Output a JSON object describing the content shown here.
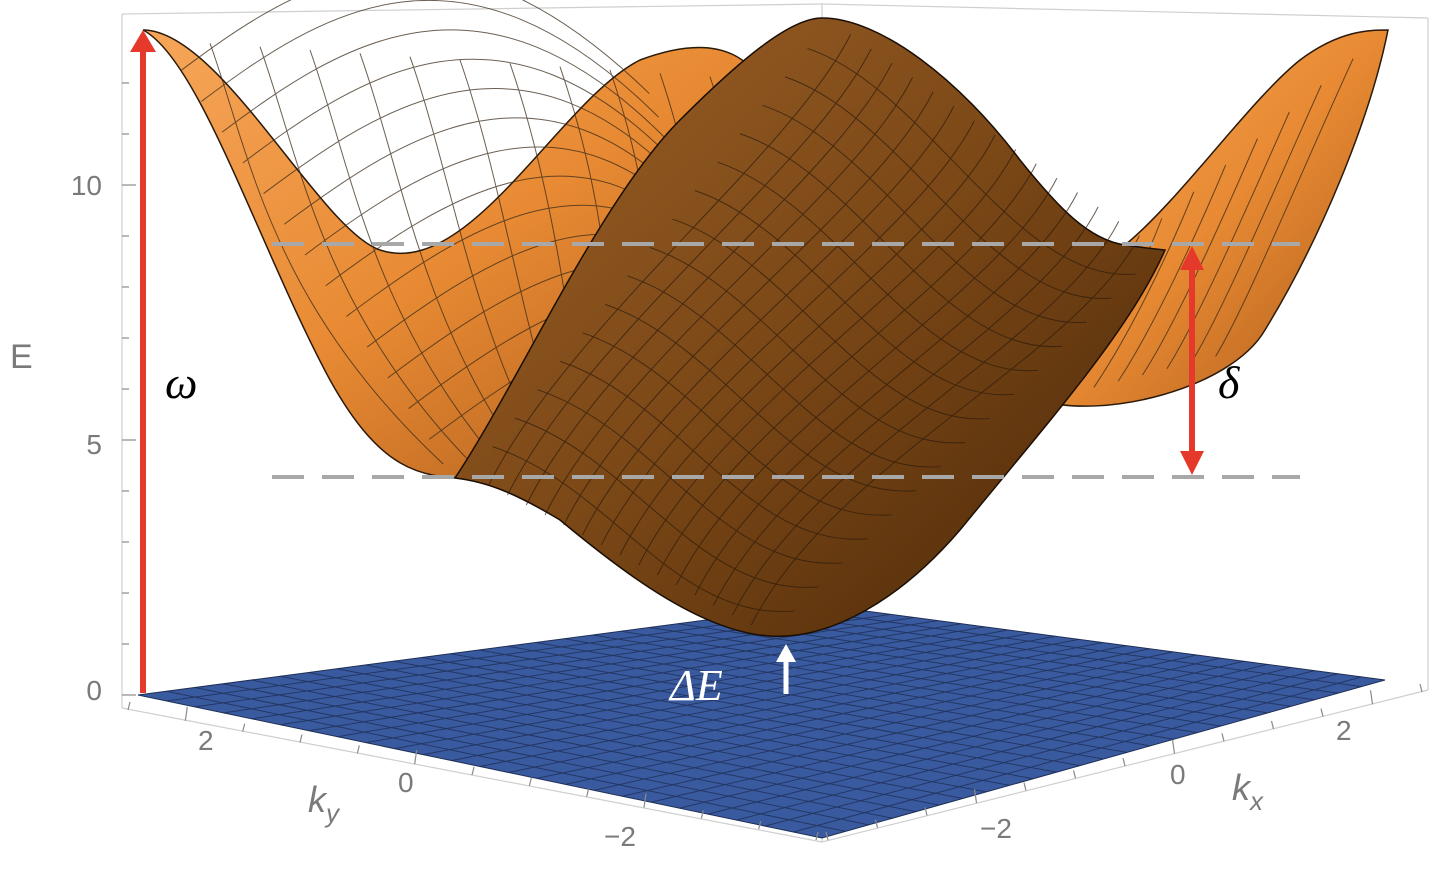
{
  "chart_data": {
    "type": "surface3d",
    "surfaces": [
      {
        "name": "upper",
        "function": "(cos kx + 4)(cos ky + 4) / 2",
        "color": "#e88b35",
        "shading": "orange"
      },
      {
        "name": "lower",
        "function": "(cos kx + 4)(cos ky + 4) / 2",
        "color": "#7a4716",
        "shading": "brown"
      },
      {
        "name": "ground",
        "function": "0",
        "color": "#3a5aa0"
      }
    ],
    "axes": {
      "z": {
        "label": "E",
        "range": [
          0,
          12.5
        ],
        "ticks": [
          {
            "value": 0,
            "label": "0"
          },
          {
            "value": 5,
            "label": "5"
          },
          {
            "value": 10,
            "label": "10"
          }
        ]
      },
      "kx": {
        "label_main": "k",
        "label_sub": "x",
        "range": [
          -3.14159,
          3.14159
        ],
        "ticks": [
          {
            "value": -2,
            "label": "−2"
          },
          {
            "value": 0,
            "label": "0"
          },
          {
            "value": 2,
            "label": "2"
          }
        ]
      },
      "ky": {
        "label_main": "k",
        "label_sub": "y",
        "range": [
          -3.14159,
          3.14159
        ],
        "ticks": [
          {
            "value": -2,
            "label": "−2"
          },
          {
            "value": 0,
            "label": "0"
          },
          {
            "value": 2,
            "label": "2"
          }
        ]
      }
    },
    "annotations": [
      {
        "label": "ω",
        "type": "arrow",
        "from_E": 0,
        "to_E": 12.5,
        "color": "#e53a2b"
      },
      {
        "label": "δ",
        "type": "double-arrow",
        "from_E": 4.25,
        "to_E": 8.75,
        "color": "#e53a2b"
      },
      {
        "label": "ΔE",
        "type": "arrow",
        "from_E": 0,
        "to_E": 1.2,
        "color": "#ffffff"
      }
    ],
    "reference_lines": [
      {
        "E": 8.75,
        "style": "dashed"
      },
      {
        "E": 4.25,
        "style": "dashed"
      }
    ]
  }
}
